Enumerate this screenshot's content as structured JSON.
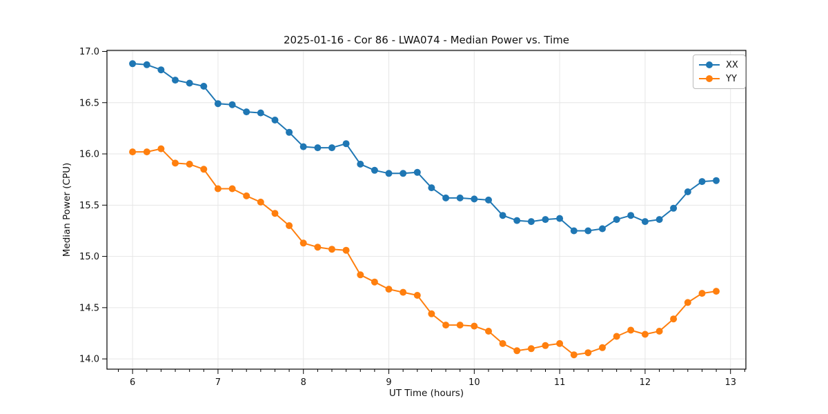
{
  "chart_data": {
    "type": "line",
    "title": "2025-01-16 - Cor 86 - LWA074 - Median Power vs. Time",
    "xlabel": "UT Time (hours)",
    "ylabel": "Median Power (CPU)",
    "xlim": [
      5.7,
      13.18
    ],
    "ylim": [
      13.9,
      17.01
    ],
    "xticks": [
      6,
      7,
      8,
      9,
      10,
      11,
      12,
      13
    ],
    "yticks": [
      "14.0",
      "14.5",
      "15.0",
      "15.5",
      "16.0",
      "16.5",
      "17.0"
    ],
    "x_minor_step": 0.166667,
    "grid": true,
    "grid_color": "#e6e6e6",
    "legend_position": "top-right",
    "marker": "circle",
    "x": [
      6.0,
      6.167,
      6.333,
      6.5,
      6.667,
      6.833,
      7.0,
      7.167,
      7.333,
      7.5,
      7.667,
      7.833,
      8.0,
      8.167,
      8.333,
      8.5,
      8.667,
      8.833,
      9.0,
      9.167,
      9.333,
      9.5,
      9.667,
      9.833,
      10.0,
      10.167,
      10.333,
      10.5,
      10.667,
      10.833,
      11.0,
      11.167,
      11.333,
      11.5,
      11.667,
      11.833,
      12.0,
      12.167,
      12.333,
      12.5,
      12.667,
      12.833
    ],
    "series": [
      {
        "name": "XX",
        "color": "#1f77b4",
        "values": [
          16.88,
          16.87,
          16.82,
          16.72,
          16.69,
          16.66,
          16.49,
          16.48,
          16.41,
          16.4,
          16.33,
          16.21,
          16.07,
          16.06,
          16.06,
          16.1,
          15.9,
          15.84,
          15.81,
          15.81,
          15.82,
          15.67,
          15.57,
          15.57,
          15.56,
          15.55,
          15.4,
          15.35,
          15.34,
          15.36,
          15.37,
          15.25,
          15.25,
          15.27,
          15.36,
          15.4,
          15.34,
          15.36,
          15.47,
          15.63,
          15.73,
          15.74
        ]
      },
      {
        "name": "YY",
        "color": "#ff7f0e",
        "values": [
          16.02,
          16.02,
          16.05,
          15.91,
          15.9,
          15.85,
          15.66,
          15.66,
          15.59,
          15.53,
          15.42,
          15.3,
          15.13,
          15.09,
          15.07,
          15.06,
          14.82,
          14.75,
          14.68,
          14.65,
          14.62,
          14.44,
          14.33,
          14.33,
          14.32,
          14.27,
          14.15,
          14.08,
          14.1,
          14.13,
          14.15,
          14.04,
          14.06,
          14.11,
          14.22,
          14.28,
          14.24,
          14.27,
          14.39,
          14.55,
          14.64,
          14.66
        ]
      }
    ]
  }
}
